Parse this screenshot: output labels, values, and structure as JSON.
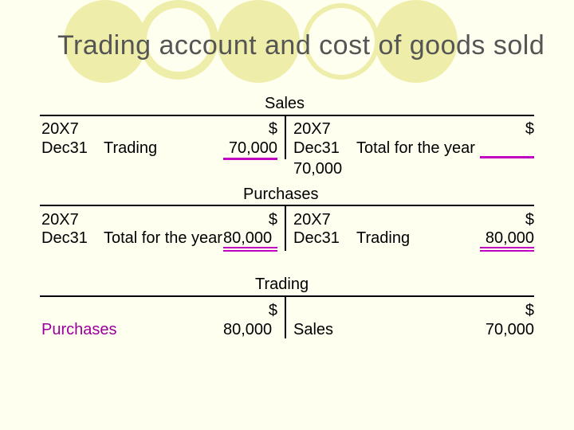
{
  "title": "Trading account and cost of goods sold",
  "colors": {
    "accent": "#c000c0",
    "deco_circle": "#eeeeaa",
    "purchases_text": "#990099"
  },
  "sales": {
    "heading": "Sales",
    "debit": {
      "year": "20X7",
      "date": "Dec31",
      "desc": "Trading",
      "currency": "$",
      "amount": "70,000"
    },
    "credit": {
      "year": "20X7",
      "date": "Dec31",
      "desc": "Total for the year",
      "currency": "$",
      "amount": "70,000"
    }
  },
  "purchases": {
    "heading": "Purchases",
    "debit": {
      "year": "20X7",
      "date": "Dec31",
      "desc": "Total for the year",
      "currency": "$",
      "amount": "80,000"
    },
    "credit": {
      "year": "20X7",
      "date": "Dec31",
      "desc": "Trading",
      "currency": "$",
      "amount": "80,000"
    }
  },
  "trading": {
    "heading": "Trading",
    "debit": {
      "desc": "Purchases",
      "currency": "$",
      "amount": "80,000"
    },
    "credit": {
      "desc": "Sales",
      "currency": "$",
      "amount": "70,000"
    }
  }
}
